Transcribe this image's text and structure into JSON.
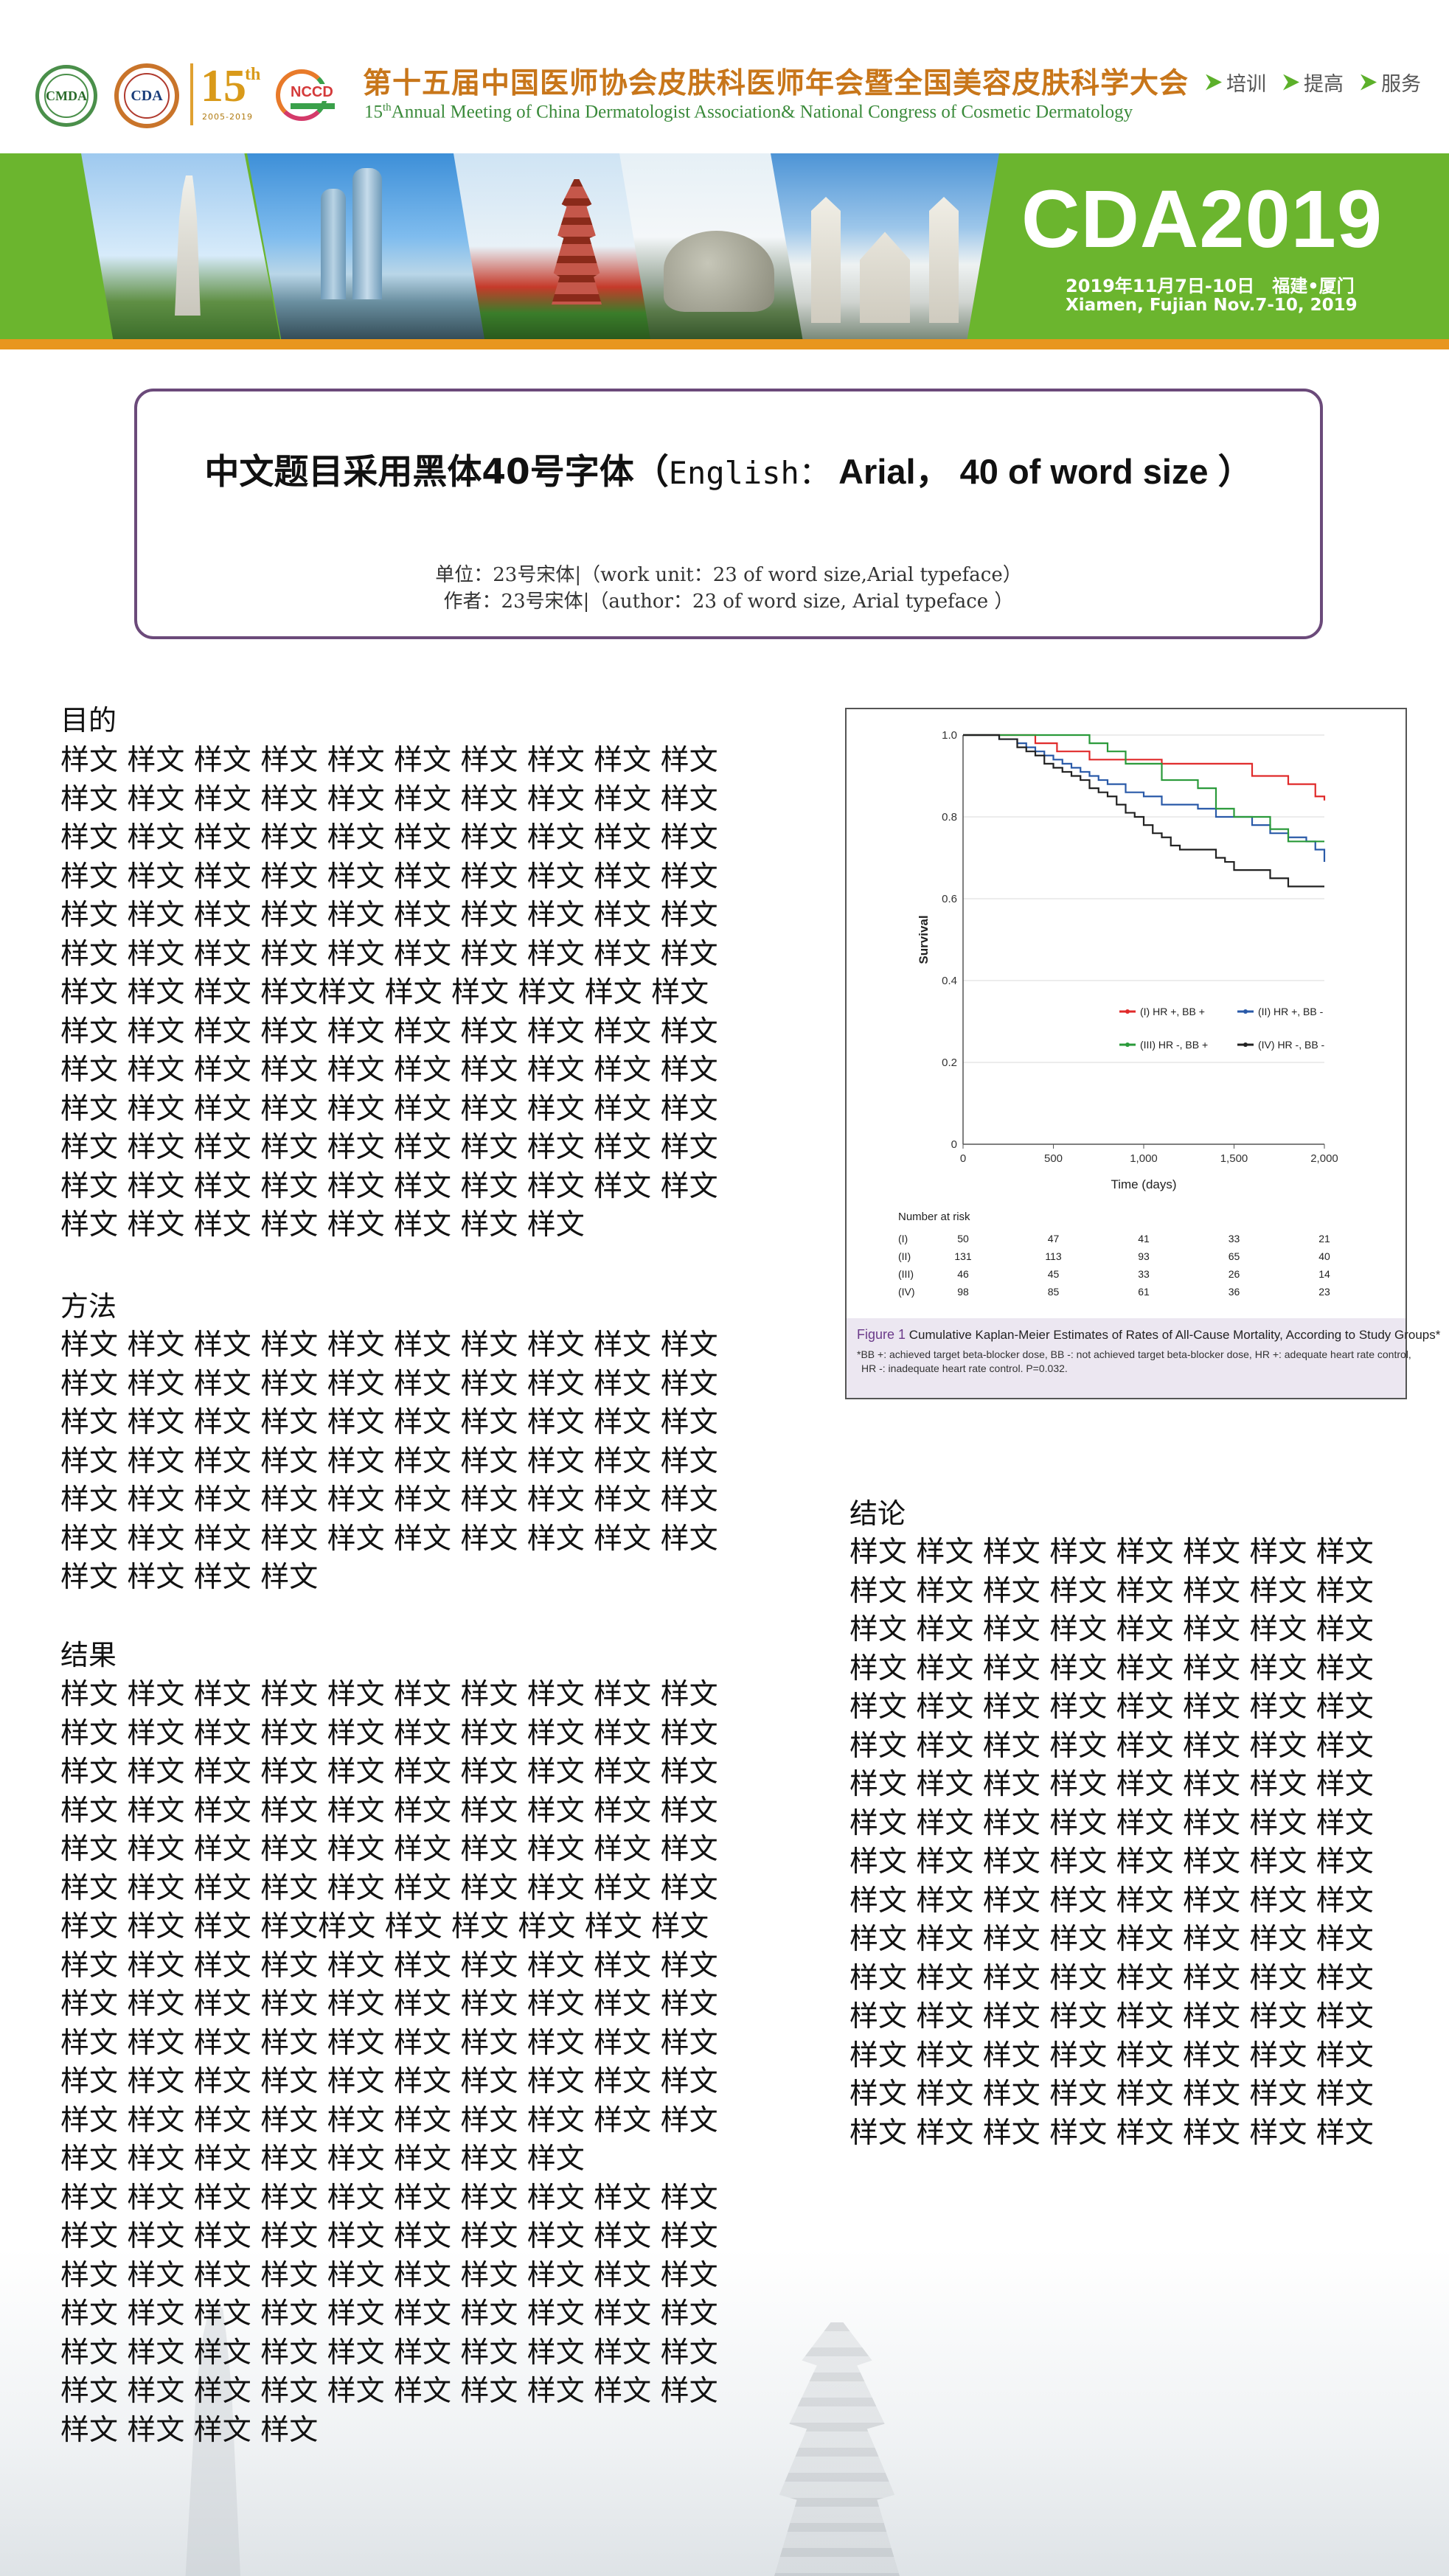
{
  "header": {
    "logo_cmda": "CMDA",
    "logo_cda": "CDA",
    "logo_15": "15",
    "logo_15_suffix": "th",
    "logo_15_years": "2005-2019",
    "logo_nccd": "NCCD",
    "title_cn": "第十五届中国医师协会皮肤科医师年会暨全国美容皮肤科学大会",
    "title_en_num": "15",
    "title_en_sup": "th",
    "title_en_rest": "Annual Meeting of China Dermatologist Association& National Congress of Cosmetic Dermatology",
    "nav": [
      "培训",
      "提高",
      "服务"
    ]
  },
  "banner": {
    "brand": "CDA2019",
    "date_cn": "2019年11月7日-10日　福建•厦门",
    "date_en": "Xiamen, Fujian  Nov.7-10, 2019"
  },
  "title_box": {
    "title_cn": "中文题目采用黑体40号字体（",
    "title_mono": "English：",
    "title_en": " Arial， 40 of word size ）",
    "unit": "单位：23号宋体|（work unit：23 of word size,Arial  typeface）",
    "author": "作者：23号宋体|（author：23 of word size, Arial  typeface ）"
  },
  "sections": {
    "objective": {
      "heading": "目的",
      "body": "样文 样文 样文 样文 样文 样文 样文 样文 样文 样文\n样文 样文 样文 样文 样文 样文 样文 样文 样文 样文\n样文 样文 样文 样文 样文 样文 样文 样文 样文 样文\n样文 样文 样文 样文 样文 样文 样文 样文 样文 样文\n样文 样文 样文 样文 样文 样文 样文 样文 样文 样文\n样文 样文 样文 样文 样文 样文 样文 样文 样文 样文\n样文 样文 样文 样文样文 样文 样文 样文 样文 样文\n样文 样文 样文 样文 样文 样文 样文 样文 样文 样文\n样文 样文 样文 样文 样文 样文 样文 样文 样文 样文\n样文 样文 样文 样文 样文 样文 样文 样文 样文 样文\n样文 样文 样文 样文 样文 样文 样文 样文 样文 样文\n样文 样文 样文 样文 样文 样文 样文 样文 样文 样文\n样文 样文 样文 样文 样文 样文 样文 样文"
    },
    "method": {
      "heading": "方法",
      "body": "样文 样文 样文 样文 样文 样文 样文 样文 样文 样文\n样文 样文 样文 样文 样文 样文 样文 样文 样文 样文\n样文 样文 样文 样文 样文 样文 样文 样文 样文 样文\n样文 样文 样文 样文 样文 样文 样文 样文 样文 样文\n样文 样文 样文 样文 样文 样文 样文 样文 样文 样文\n样文 样文 样文 样文 样文 样文 样文 样文 样文 样文\n样文 样文 样文 样文"
    },
    "results": {
      "heading": "结果",
      "body": "样文 样文 样文 样文 样文 样文 样文 样文 样文 样文\n样文 样文 样文 样文 样文 样文 样文 样文 样文 样文\n样文 样文 样文 样文 样文 样文 样文 样文 样文 样文\n样文 样文 样文 样文 样文 样文 样文 样文 样文 样文\n样文 样文 样文 样文 样文 样文 样文 样文 样文 样文\n样文 样文 样文 样文 样文 样文 样文 样文 样文 样文\n样文 样文 样文 样文样文 样文 样文 样文 样文 样文\n样文 样文 样文 样文 样文 样文 样文 样文 样文 样文\n样文 样文 样文 样文 样文 样文 样文 样文 样文 样文\n样文 样文 样文 样文 样文 样文 样文 样文 样文 样文\n样文 样文 样文 样文 样文 样文 样文 样文 样文 样文\n样文 样文 样文 样文 样文 样文 样文 样文 样文 样文\n样文 样文 样文 样文 样文 样文 样文 样文\n样文 样文 样文 样文 样文 样文 样文 样文 样文 样文\n样文 样文 样文 样文 样文 样文 样文 样文 样文 样文\n样文 样文 样文 样文 样文 样文 样文 样文 样文 样文\n样文 样文 样文 样文 样文 样文 样文 样文 样文 样文\n样文 样文 样文 样文 样文 样文 样文 样文 样文 样文\n样文 样文 样文 样文 样文 样文 样文 样文 样文 样文\n样文 样文 样文 样文"
    },
    "conclusion": {
      "heading": "结论",
      "body": "样文 样文 样文 样文 样文 样文 样文 样文\n样文 样文 样文 样文 样文 样文 样文 样文\n样文 样文 样文 样文 样文 样文 样文 样文\n样文 样文 样文 样文 样文 样文 样文 样文\n样文 样文 样文 样文 样文 样文 样文 样文\n样文 样文 样文 样文 样文 样文 样文 样文\n样文 样文 样文 样文 样文 样文 样文 样文\n样文 样文 样文 样文 样文 样文 样文 样文\n样文 样文 样文 样文 样文 样文 样文 样文\n样文 样文 样文 样文 样文 样文 样文 样文\n样文 样文 样文 样文 样文 样文 样文 样文\n样文 样文 样文 样文 样文 样文 样文 样文\n样文 样文 样文 样文 样文 样文 样文 样文\n样文 样文 样文 样文 样文 样文 样文 样文\n样文 样文 样文 样文 样文 样文 样文 样文\n样文 样文 样文 样文 样文 样文 样文 样文"
    }
  },
  "figure": {
    "caption_label": "Figure 1",
    "caption_title": " Cumulative Kaplan-Meier Estimates of Rates of All-Cause Mortality, According to Study Groups*",
    "caption_note1": "*BB +: achieved target beta-blocker dose, BB -: not achieved target beta-blocker dose, HR +: adequate heart rate control,",
    "caption_note2": "HR -: inadequate heart rate control. P=0.032."
  },
  "chart_data": {
    "type": "line",
    "title": "",
    "xlabel": "Time (days)",
    "ylabel": "Survival",
    "xlim": [
      0,
      2000
    ],
    "ylim": [
      0,
      1.0
    ],
    "x_ticks": [
      0,
      500,
      1000,
      1500,
      2000
    ],
    "x_tick_labels": [
      "0",
      "500",
      "1,000",
      "1,500",
      "2,000"
    ],
    "y_ticks": [
      0,
      0.2,
      0.4,
      0.6,
      0.8,
      1.0
    ],
    "y_tick_labels": [
      "0",
      "0.2",
      "0.4",
      "0.6",
      "0.8",
      "1.0"
    ],
    "grid": "horizontal",
    "legend_placement": "center-right",
    "series": [
      {
        "name": "(I) HR +, BB +",
        "color": "#e02a2a",
        "x": [
          0,
          250,
          400,
          450,
          520,
          600,
          700,
          800,
          900,
          1000,
          1100,
          1200,
          1300,
          1400,
          1500,
          1600,
          1700,
          1800,
          1850,
          1900,
          1950,
          2000
        ],
        "values": [
          1.0,
          1.0,
          0.98,
          0.98,
          0.96,
          0.96,
          0.94,
          0.94,
          0.94,
          0.94,
          0.93,
          0.93,
          0.93,
          0.93,
          0.93,
          0.9,
          0.9,
          0.88,
          0.88,
          0.88,
          0.85,
          0.84
        ]
      },
      {
        "name": "(II) HR +, BB -",
        "color": "#2a5aa8",
        "x": [
          0,
          200,
          300,
          350,
          400,
          450,
          500,
          550,
          600,
          650,
          700,
          750,
          800,
          900,
          1000,
          1100,
          1200,
          1300,
          1400,
          1500,
          1600,
          1700,
          1800,
          1900,
          1950,
          2000
        ],
        "values": [
          1.0,
          0.99,
          0.98,
          0.97,
          0.96,
          0.95,
          0.94,
          0.93,
          0.92,
          0.91,
          0.9,
          0.89,
          0.88,
          0.86,
          0.85,
          0.83,
          0.83,
          0.82,
          0.8,
          0.8,
          0.78,
          0.76,
          0.75,
          0.74,
          0.72,
          0.69
        ]
      },
      {
        "name": "(III) HR -, BB +",
        "color": "#2a9a3a",
        "x": [
          0,
          500,
          700,
          800,
          900,
          1000,
          1100,
          1200,
          1300,
          1400,
          1500,
          1600,
          1700,
          1800,
          1900,
          2000
        ],
        "values": [
          1.0,
          1.0,
          0.98,
          0.96,
          0.93,
          0.93,
          0.89,
          0.89,
          0.87,
          0.82,
          0.8,
          0.8,
          0.77,
          0.74,
          0.74,
          0.74
        ]
      },
      {
        "name": "(IV) HR -, BB -",
        "color": "#222222",
        "x": [
          0,
          200,
          300,
          350,
          400,
          450,
          500,
          550,
          600,
          650,
          700,
          750,
          800,
          850,
          900,
          950,
          1000,
          1050,
          1100,
          1150,
          1200,
          1300,
          1400,
          1450,
          1500,
          1600,
          1700,
          1800,
          1900,
          2000
        ],
        "values": [
          1.0,
          0.99,
          0.97,
          0.96,
          0.95,
          0.93,
          0.92,
          0.91,
          0.9,
          0.89,
          0.87,
          0.86,
          0.85,
          0.83,
          0.81,
          0.8,
          0.78,
          0.76,
          0.75,
          0.73,
          0.72,
          0.72,
          0.7,
          0.69,
          0.67,
          0.67,
          0.65,
          0.63,
          0.63,
          0.63
        ]
      }
    ],
    "risk_table": {
      "title": "Number at risk",
      "rows": [
        {
          "label": "(I)",
          "values": [
            "50",
            "47",
            "41",
            "33",
            "21"
          ]
        },
        {
          "label": "(II)",
          "values": [
            "131",
            "113",
            "93",
            "65",
            "40"
          ]
        },
        {
          "label": "(III)",
          "values": [
            "46",
            "45",
            "33",
            "26",
            "14"
          ]
        },
        {
          "label": "(IV)",
          "values": [
            "98",
            "85",
            "61",
            "36",
            "23"
          ]
        }
      ]
    }
  }
}
